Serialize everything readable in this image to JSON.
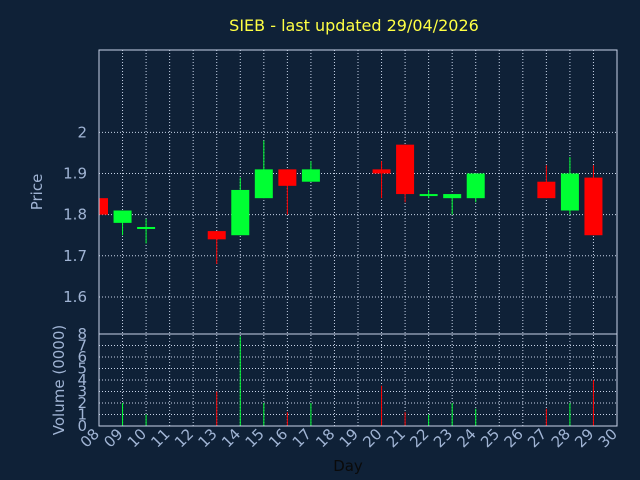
{
  "chart_data": {
    "type": "candlestick",
    "title": "SIEB - last updated 29/04/2026",
    "xlabel": "Day",
    "price_panel": {
      "ylabel": "Price",
      "ylim": [
        1.51,
        2.2
      ],
      "yticks": [
        1.6,
        1.7,
        1.8,
        1.9,
        2
      ],
      "ytick_labels": [
        "1.6",
        "1.7",
        "1.8",
        "1.9",
        "2"
      ]
    },
    "volume_panel": {
      "ylabel": "Volume (0000)",
      "ylim": [
        0,
        8
      ],
      "yticks": [
        0,
        1,
        2,
        3,
        4,
        5,
        6,
        7,
        8
      ],
      "ytick_labels": [
        "0",
        "1",
        "2",
        "3",
        "4",
        "5",
        "6",
        "7",
        "8"
      ]
    },
    "x_ticks": [
      "08",
      "09",
      "10",
      "11",
      "12",
      "13",
      "14",
      "15",
      "16",
      "17",
      "18",
      "19",
      "20",
      "21",
      "22",
      "23",
      "24",
      "25",
      "26",
      "27",
      "28",
      "29",
      "30"
    ],
    "grid": true,
    "up_color": "#00ff33",
    "down_color": "#ff0000",
    "background": "#0f2137",
    "candles": [
      {
        "day": "08",
        "open": 1.84,
        "high": 1.84,
        "low": 1.8,
        "close": 1.8,
        "volume": 0
      },
      {
        "day": "09",
        "open": 1.78,
        "high": 1.81,
        "low": 1.75,
        "close": 1.81,
        "volume": 2
      },
      {
        "day": "10",
        "open": 1.77,
        "high": 1.79,
        "low": 1.73,
        "close": 1.77,
        "volume": 1
      },
      {
        "day": "13",
        "open": 1.76,
        "high": 1.76,
        "low": 1.68,
        "close": 1.74,
        "volume": 3
      },
      {
        "day": "14",
        "open": 1.75,
        "high": 1.89,
        "low": 1.75,
        "close": 1.86,
        "volume": 7.8
      },
      {
        "day": "15",
        "open": 1.84,
        "high": 1.98,
        "low": 1.84,
        "close": 1.91,
        "volume": 2
      },
      {
        "day": "16",
        "open": 1.91,
        "high": 1.91,
        "low": 1.8,
        "close": 1.87,
        "volume": 1.2
      },
      {
        "day": "17",
        "open": 1.88,
        "high": 1.93,
        "low": 1.88,
        "close": 1.91,
        "volume": 2
      },
      {
        "day": "20",
        "open": 1.91,
        "high": 1.93,
        "low": 1.84,
        "close": 1.9,
        "volume": 3.5
      },
      {
        "day": "21",
        "open": 1.97,
        "high": 1.97,
        "low": 1.83,
        "close": 1.85,
        "volume": 1.2
      },
      {
        "day": "22",
        "open": 1.85,
        "high": 1.86,
        "low": 1.84,
        "close": 1.85,
        "volume": 1
      },
      {
        "day": "23",
        "open": 1.84,
        "high": 1.85,
        "low": 1.8,
        "close": 1.85,
        "volume": 2
      },
      {
        "day": "24",
        "open": 1.84,
        "high": 1.9,
        "low": 1.83,
        "close": 1.9,
        "volume": 1.5
      },
      {
        "day": "27",
        "open": 1.88,
        "high": 1.92,
        "low": 1.84,
        "close": 1.84,
        "volume": 1.5
      },
      {
        "day": "28",
        "open": 1.81,
        "high": 1.94,
        "low": 1.8,
        "close": 1.9,
        "volume": 2
      },
      {
        "day": "29",
        "open": 1.89,
        "high": 1.92,
        "low": 1.75,
        "close": 1.75,
        "volume": 4
      }
    ]
  }
}
